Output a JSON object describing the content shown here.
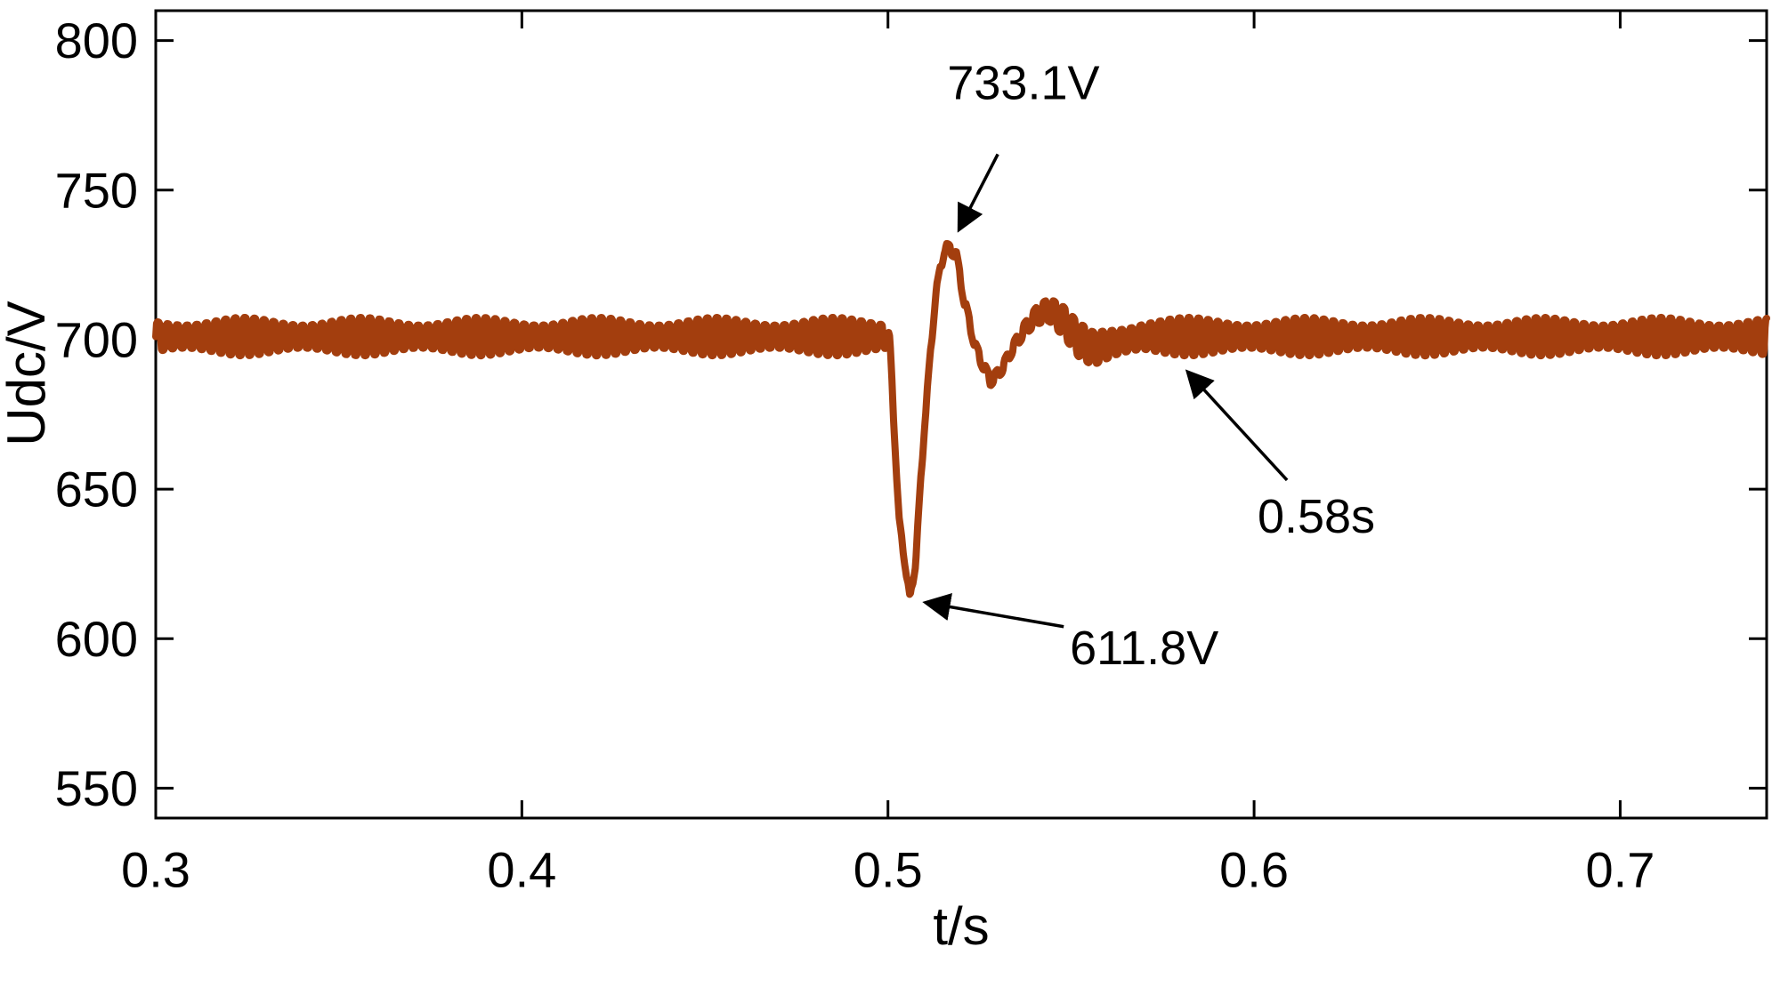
{
  "chart_data": {
    "type": "line",
    "title": "",
    "xlabel": "t/s",
    "ylabel": "Udc/V",
    "xlim": [
      0.3,
      0.74
    ],
    "ylim": [
      540,
      810
    ],
    "grid": false,
    "legend": "none",
    "xticks": [
      {
        "v": 0.3,
        "label": "0.3"
      },
      {
        "v": 0.4,
        "label": "0.4"
      },
      {
        "v": 0.5,
        "label": "0.5"
      },
      {
        "v": 0.6,
        "label": "0.6"
      },
      {
        "v": 0.7,
        "label": "0.7"
      }
    ],
    "yticks": [
      {
        "v": 550,
        "label": "550"
      },
      {
        "v": 600,
        "label": "600"
      },
      {
        "v": 650,
        "label": "650"
      },
      {
        "v": 700,
        "label": "700"
      },
      {
        "v": 750,
        "label": "750"
      },
      {
        "v": 800,
        "label": "800"
      }
    ],
    "line_color": "#A33E0E",
    "axis_color": "#000000",
    "key_values": {
      "overshoot_voltage": 733.1,
      "undershoot_voltage": 611.8,
      "settling_time_s": 0.58,
      "steady_state_voltage": 700
    },
    "series": [
      {
        "name": "Udc",
        "waypoints": [
          [
            0.3,
            701
          ],
          [
            0.5,
            701
          ],
          [
            0.5005,
            698
          ],
          [
            0.503,
            640
          ],
          [
            0.506,
            613
          ],
          [
            0.5075,
            625
          ],
          [
            0.51,
            672
          ],
          [
            0.513,
            715
          ],
          [
            0.5155,
            731
          ],
          [
            0.5185,
            729
          ],
          [
            0.521,
            712
          ],
          [
            0.524,
            697
          ],
          [
            0.528,
            686
          ],
          [
            0.531,
            690
          ],
          [
            0.534,
            697
          ],
          [
            0.537,
            703
          ],
          [
            0.5405,
            708
          ],
          [
            0.544,
            710
          ],
          [
            0.548,
            706
          ],
          [
            0.552,
            700
          ],
          [
            0.556,
            697
          ],
          [
            0.562,
            699
          ],
          [
            0.57,
            701
          ],
          [
            0.74,
            701
          ]
        ],
        "ripple": {
          "amp": 6.5,
          "freq": 380,
          "scale": [
            [
              0.3,
              1
            ],
            [
              0.4995,
              1
            ],
            [
              0.502,
              0.25
            ],
            [
              0.516,
              0.25
            ],
            [
              0.53,
              0.35
            ],
            [
              0.545,
              0.7
            ],
            [
              0.556,
              1
            ],
            [
              0.74,
              1
            ]
          ]
        }
      }
    ],
    "annotations": [
      {
        "label": "733.1V",
        "text_x": 0.537,
        "text_y": 786,
        "tail_x": 0.53,
        "tail_y": 762,
        "tip_x": 0.5195,
        "tip_y": 737
      },
      {
        "label": "0.58s",
        "text_x": 0.617,
        "text_y": 641,
        "tail_x": 0.609,
        "tail_y": 653,
        "tip_x": 0.582,
        "tip_y": 689
      },
      {
        "label": "611.8V",
        "text_x": 0.57,
        "text_y": 597,
        "tail_x": 0.548,
        "tail_y": 604,
        "tip_x": 0.5105,
        "tip_y": 612
      }
    ]
  }
}
